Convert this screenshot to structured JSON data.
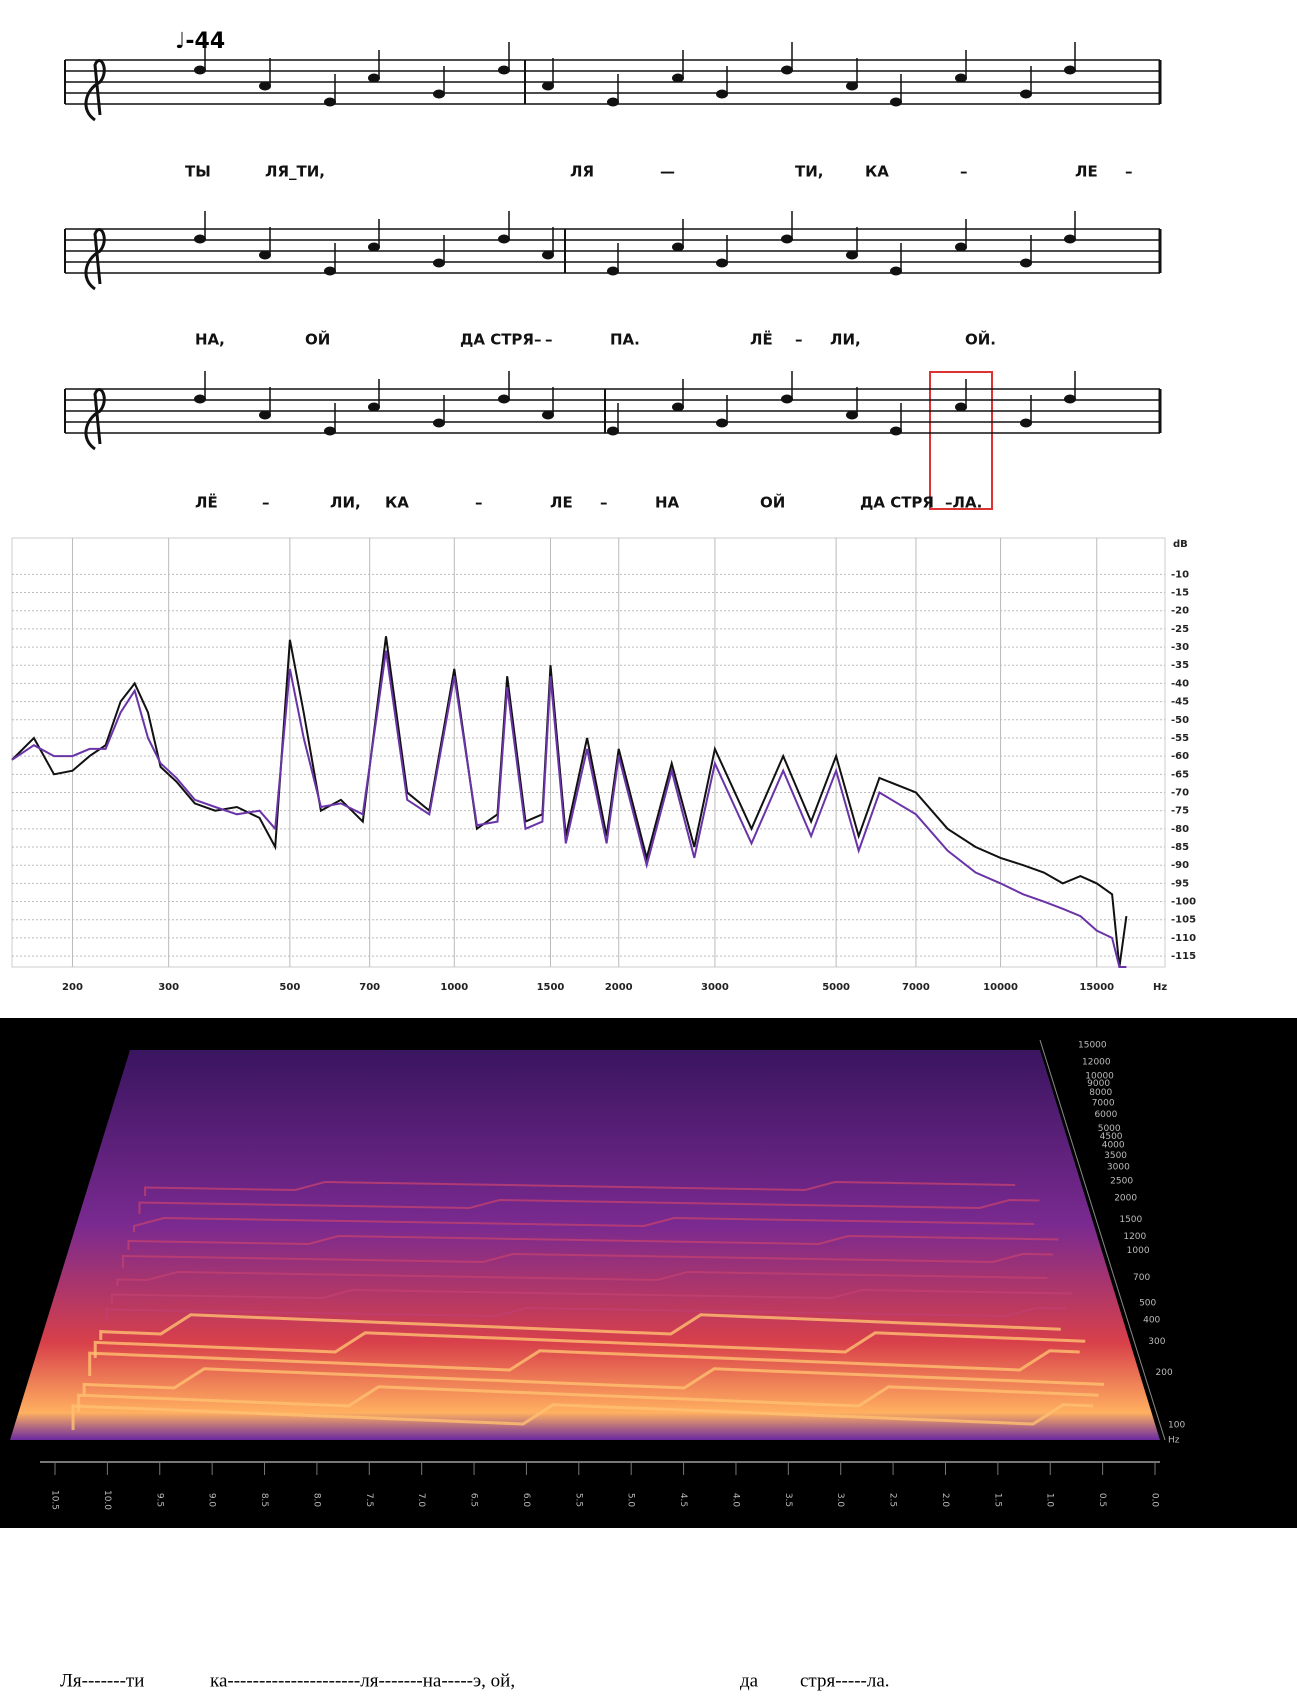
{
  "score": {
    "tempo": "♩-44",
    "lyrics": [
      [
        "ТЫ",
        "ЛЯ_ТИ,",
        "ЛЯ",
        "—",
        "ТИ,",
        "КА",
        "–",
        "ЛЕ",
        "–"
      ],
      [
        "НА,",
        "ОЙ",
        "ДА СТРЯ–",
        "–",
        "ПА.",
        "ЛЁ",
        "–",
        "ЛИ,",
        "ОЙ."
      ],
      [
        "ЛЁ",
        "–",
        "ЛИ,",
        "КА",
        "–",
        "ЛЕ",
        "–",
        "НА",
        "ОЙ",
        "ДА СТРЯ",
        "–ЛА."
      ]
    ]
  },
  "chart_data": {
    "type": "line",
    "x_label": "Hz",
    "y_label": "dB",
    "log_x": true,
    "grid": true,
    "x": [
      155,
      170,
      185,
      200,
      215,
      230,
      245,
      260,
      275,
      290,
      310,
      335,
      365,
      400,
      440,
      470,
      500,
      530,
      570,
      620,
      680,
      750,
      820,
      900,
      1000,
      1100,
      1200,
      1250,
      1350,
      1450,
      1500,
      1600,
      1750,
      1900,
      2000,
      2250,
      2500,
      2750,
      3000,
      3500,
      4000,
      4500,
      5000,
      5500,
      6000,
      7000,
      8000,
      9000,
      10000,
      11000,
      12000,
      13000,
      14000,
      15000,
      16000,
      16500,
      17000
    ],
    "series": [
      {
        "color": "#111111",
        "values": [
          -61,
          -55,
          -65,
          -64,
          -60,
          -57,
          -45,
          -40,
          -48,
          -63,
          -67,
          -73,
          -75,
          -74,
          -77,
          -85,
          -28,
          -48,
          -75,
          -72,
          -78,
          -27,
          -70,
          -75,
          -36,
          -80,
          -76,
          -38,
          -78,
          -76,
          -35,
          -82,
          -55,
          -82,
          -58,
          -88,
          -62,
          -85,
          -58,
          -80,
          -60,
          -78,
          -60,
          -82,
          -66,
          -70,
          -80,
          -85,
          -88,
          -90,
          -92,
          -95,
          -93,
          -95,
          -98,
          -118,
          -104
        ]
      },
      {
        "color": "#6a34a8",
        "values": [
          -61,
          -57,
          -60,
          -60,
          -58,
          -58,
          -48,
          -42,
          -55,
          -62,
          -66,
          -72,
          -74,
          -76,
          -75,
          -80,
          -36,
          -55,
          -74,
          -73,
          -76,
          -31,
          -72,
          -76,
          -38,
          -79,
          -78,
          -41,
          -80,
          -78,
          -38,
          -84,
          -58,
          -84,
          -60,
          -90,
          -64,
          -88,
          -62,
          -84,
          -64,
          -82,
          -64,
          -86,
          -70,
          -76,
          -86,
          -92,
          -95,
          -98,
          -100,
          -102,
          -104,
          -108,
          -110,
          -118,
          -118
        ]
      }
    ],
    "xlim": [
      155,
      20000
    ],
    "ylim": [
      0,
      -118
    ],
    "xticks": [
      200,
      300,
      500,
      700,
      1000,
      1500,
      2000,
      3000,
      5000,
      7000,
      10000,
      15000
    ],
    "yticks": [
      -10,
      -15,
      -20,
      -25,
      -30,
      -35,
      -40,
      -45,
      -50,
      -55,
      -60,
      -65,
      -70,
      -75,
      -80,
      -85,
      -90,
      -95,
      -100,
      -105,
      -110,
      -115
    ]
  },
  "spectrogram": {
    "freq_labels": [
      "15000",
      "12000",
      "10000",
      "9000",
      "8000",
      "7000",
      "6000",
      "5000",
      "4500",
      "4000",
      "3500",
      "3000",
      "2500",
      "2000",
      "1500",
      "1200",
      "1000",
      "700",
      "500",
      "400",
      "300",
      "200",
      "100"
    ],
    "freq_unit": "Hz",
    "time_labels": [
      "10.5",
      "10.0",
      "9.5",
      "9.0",
      "8.5",
      "8.0",
      "7.5",
      "7.0",
      "6.5",
      "6.0",
      "5.5",
      "5.0",
      "4.5",
      "4.0",
      "3.5",
      "3.0",
      "2.5",
      "2.0",
      "1.5",
      "1.0",
      "0.5",
      "0.0"
    ]
  },
  "caption": [
    "Ля-------ти",
    "ка---------------------ля-------на-----э, ой,",
    "да",
    "стря-----ла."
  ]
}
